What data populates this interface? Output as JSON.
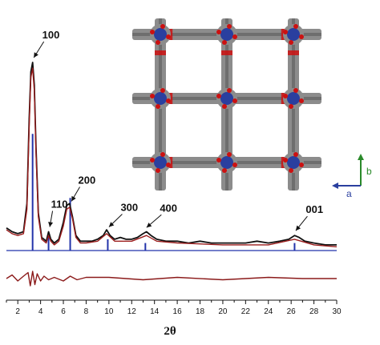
{
  "chart_data": {
    "type": "line",
    "xlabel": "2θ",
    "ylabel": "",
    "xlim": [
      1,
      30
    ],
    "xticks": [
      2,
      4,
      6,
      8,
      10,
      12,
      14,
      16,
      18,
      20,
      22,
      24,
      26,
      28,
      30
    ],
    "series": [
      {
        "role": "experimental",
        "color": "#111111",
        "x": [
          1.0,
          1.5,
          2.0,
          2.5,
          2.8,
          3.0,
          3.15,
          3.3,
          3.45,
          3.6,
          3.8,
          4.1,
          4.5,
          4.7,
          4.9,
          5.2,
          5.6,
          6.0,
          6.3,
          6.55,
          6.8,
          7.1,
          7.5,
          8.0,
          8.5,
          9.0,
          9.5,
          9.8,
          10.1,
          10.5,
          11.0,
          11.5,
          12.0,
          12.5,
          13.0,
          13.3,
          13.7,
          14.2,
          15.0,
          16.0,
          17.0,
          18.0,
          19.0,
          20.0,
          21.0,
          22.0,
          23.0,
          24.0,
          25.0,
          25.8,
          26.3,
          26.7,
          27.2,
          28.0,
          29.0,
          30.0
        ],
        "y": [
          0.12,
          0.1,
          0.09,
          0.1,
          0.25,
          0.7,
          0.95,
          1.0,
          0.88,
          0.55,
          0.2,
          0.07,
          0.05,
          0.1,
          0.06,
          0.04,
          0.06,
          0.15,
          0.24,
          0.25,
          0.18,
          0.08,
          0.05,
          0.05,
          0.05,
          0.06,
          0.08,
          0.11,
          0.08,
          0.06,
          0.07,
          0.06,
          0.06,
          0.07,
          0.09,
          0.1,
          0.08,
          0.06,
          0.05,
          0.05,
          0.04,
          0.05,
          0.04,
          0.04,
          0.04,
          0.04,
          0.05,
          0.04,
          0.05,
          0.06,
          0.08,
          0.07,
          0.05,
          0.04,
          0.03,
          0.03
        ]
      },
      {
        "role": "fit",
        "color": "#9b1c1c",
        "x": [
          1.0,
          1.5,
          2.0,
          2.5,
          2.8,
          3.0,
          3.15,
          3.3,
          3.45,
          3.6,
          3.8,
          4.1,
          4.5,
          4.7,
          4.9,
          5.2,
          5.6,
          6.0,
          6.3,
          6.55,
          6.8,
          7.1,
          7.5,
          8.0,
          9.0,
          9.8,
          10.5,
          12.0,
          13.3,
          14.2,
          16.0,
          20.0,
          24.0,
          26.3,
          28.0,
          30.0
        ],
        "y": [
          0.11,
          0.09,
          0.08,
          0.09,
          0.22,
          0.66,
          0.92,
          0.97,
          0.85,
          0.52,
          0.18,
          0.06,
          0.04,
          0.08,
          0.05,
          0.03,
          0.05,
          0.13,
          0.22,
          0.23,
          0.17,
          0.07,
          0.04,
          0.04,
          0.05,
          0.09,
          0.05,
          0.05,
          0.08,
          0.05,
          0.04,
          0.03,
          0.03,
          0.06,
          0.03,
          0.02
        ]
      },
      {
        "role": "simulated",
        "color": "#2233aa",
        "x": [
          3.3,
          4.7,
          6.6,
          9.9,
          13.2,
          26.3
        ],
        "y": [
          0.62,
          0.08,
          0.28,
          0.06,
          0.04,
          0.04
        ]
      },
      {
        "role": "difference",
        "color": "#8b1a1a",
        "x": [
          1.0,
          1.5,
          2.0,
          2.5,
          2.9,
          3.1,
          3.3,
          3.5,
          3.7,
          4.0,
          4.3,
          4.7,
          5.2,
          6.0,
          6.6,
          7.2,
          8.0,
          10.0,
          13.0,
          16.0,
          20.0,
          24.0,
          27.0,
          30.0
        ],
        "y": [
          0.0,
          0.03,
          -0.02,
          0.02,
          0.05,
          -0.06,
          0.06,
          -0.05,
          0.04,
          -0.02,
          0.02,
          -0.01,
          0.01,
          -0.02,
          0.02,
          -0.01,
          0.01,
          0.01,
          -0.01,
          0.01,
          -0.01,
          0.01,
          0.0,
          0.0
        ]
      }
    ],
    "annotations": [
      {
        "text": "100",
        "x": 3.3
      },
      {
        "text": "110",
        "x": 4.7
      },
      {
        "text": "200",
        "x": 6.6
      },
      {
        "text": "300",
        "x": 9.9
      },
      {
        "text": "400",
        "x": 13.2
      },
      {
        "text": "001",
        "x": 26.3
      }
    ]
  },
  "inset": {
    "axis_b": "b",
    "axis_a": "a",
    "colors": {
      "carbon": "#8c8c8c",
      "oxygen": "#cc1111",
      "metal": "#2a3f9f",
      "axis_b": "#2a8a2a",
      "axis_a": "#2a3f9f"
    }
  }
}
